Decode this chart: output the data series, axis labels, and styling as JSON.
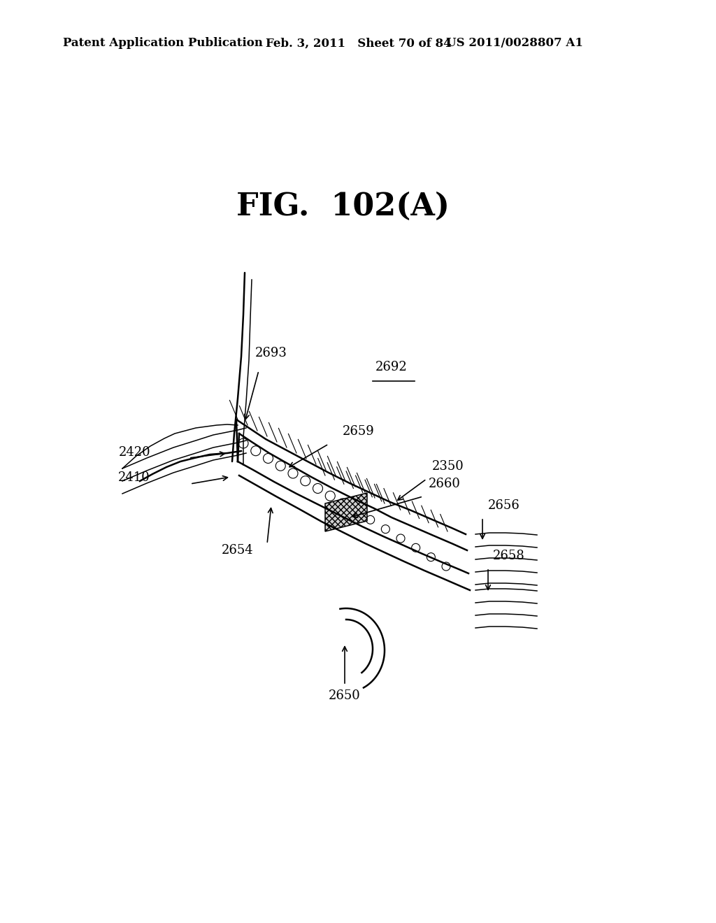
{
  "bg_color": "#ffffff",
  "fig_title": "FIG.  102(A)",
  "header_left": "Patent Application Publication",
  "header_mid": "Feb. 3, 2011   Sheet 70 of 84",
  "header_right": "US 2011/0028807 A1",
  "lw_main": 1.8,
  "lw_thin": 1.1,
  "lw_hair": 0.8,
  "label_fontsize": 13,
  "title_fontsize": 32,
  "header_fontsize": 12
}
